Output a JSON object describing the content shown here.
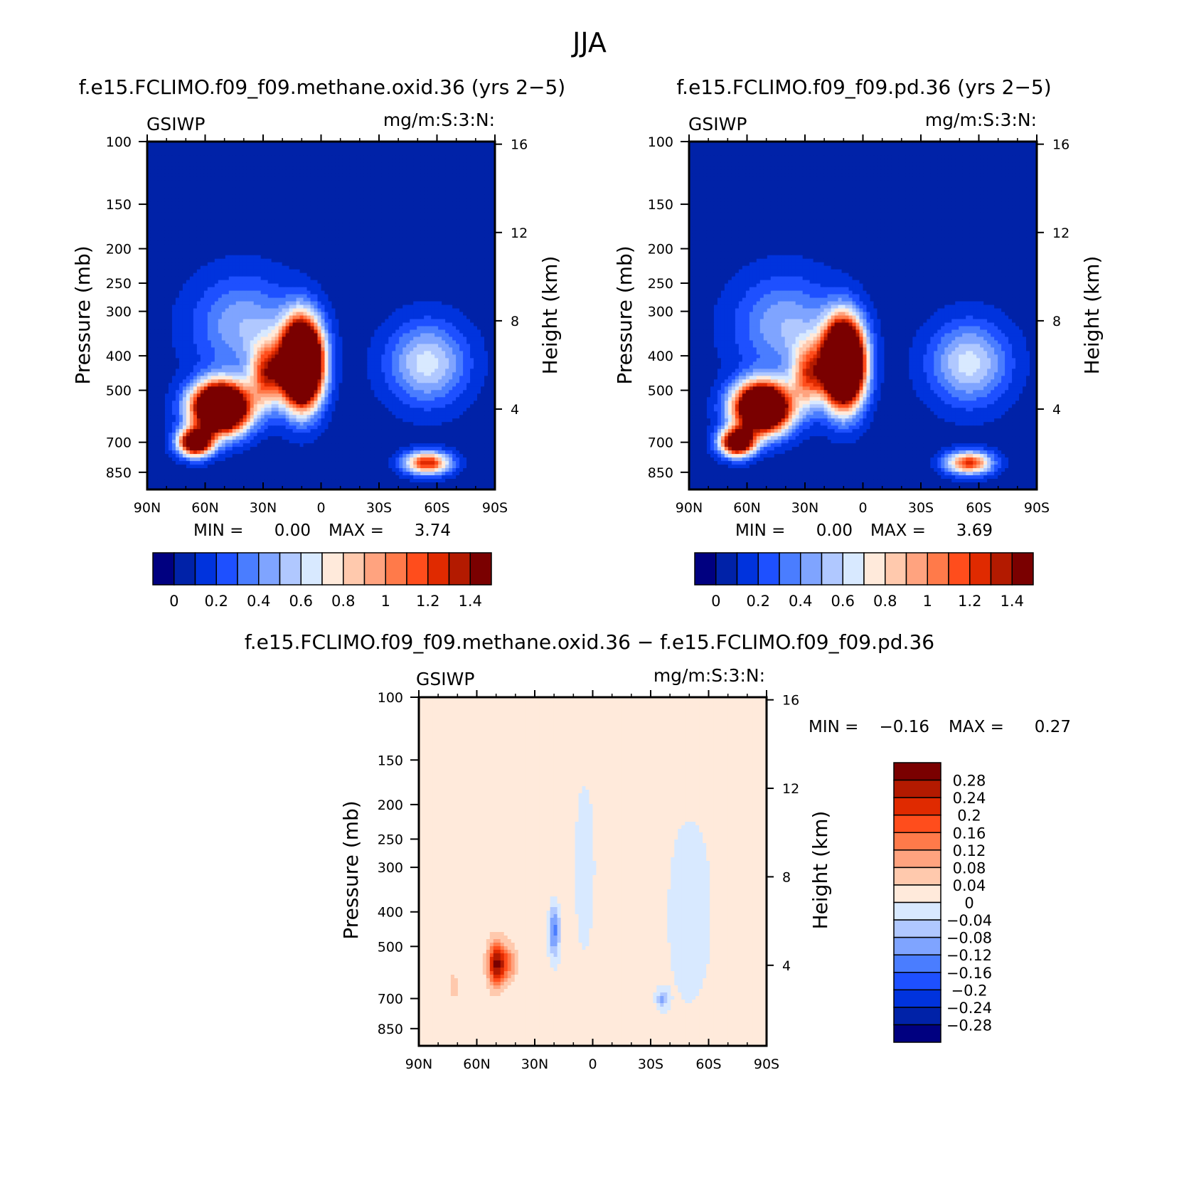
{
  "figure_title": "JJA",
  "colors": {
    "seq": [
      "#000080",
      "#0022a8",
      "#0033dd",
      "#1e50ff",
      "#4a7dff",
      "#7fa4ff",
      "#b0c8ff",
      "#d8e9ff",
      "#ffeadb",
      "#ffc9ad",
      "#ffa37f",
      "#ff7a4a",
      "#ff4d1c",
      "#e02a00",
      "#b31a00",
      "#7a0000"
    ],
    "diff": [
      "#000080",
      "#0022a8",
      "#0033dd",
      "#1e50ff",
      "#4a7dff",
      "#7fa4ff",
      "#b0c8ff",
      "#d8e9ff",
      "#ffeadb",
      "#ffc9ad",
      "#ffa37f",
      "#ff7a4a",
      "#ff4d1c",
      "#e02a00",
      "#b31a00",
      "#7a0000"
    ]
  },
  "chart_data": [
    {
      "type": "heatmap",
      "title": "f.e15.FCLIMO.f09_f09.methane.oxid.36 (yrs 2−5)",
      "var_label": "GSIWP",
      "units_label": "mg/m:S:3:N:",
      "ylabel": "Pressure (mb)",
      "y2label": "Height (km)",
      "x_ticks": [
        "90N",
        "60N",
        "30N",
        "0",
        "30S",
        "60S",
        "90S"
      ],
      "y_ticks": [
        100,
        150,
        200,
        250,
        300,
        400,
        500,
        700,
        850
      ],
      "y2_ticks": [
        16,
        12,
        8,
        4
      ],
      "ylim": [
        100,
        950
      ],
      "min_label": "MIN =",
      "min_value": "0.00",
      "max_label": "MAX =",
      "max_value": "3.74",
      "colorbar_labels": [
        "0",
        "0.2",
        "0.4",
        "0.6",
        "0.8",
        "1",
        "1.2",
        "1.4"
      ],
      "blobs": [
        {
          "lat": 52,
          "p": 560,
          "peak": 3.0,
          "wlat": 10,
          "wlogp": 0.11
        },
        {
          "lat": 65,
          "p": 700,
          "peak": 2.0,
          "wlat": 6,
          "wlogp": 0.06
        },
        {
          "lat": 10,
          "p": 420,
          "peak": 3.74,
          "wlat": 7,
          "wlogp": 0.18
        },
        {
          "lat": 28,
          "p": 450,
          "peak": 1.1,
          "wlat": 6,
          "wlogp": 0.14
        },
        {
          "lat": -55,
          "p": 800,
          "peak": 1.25,
          "wlat": 8,
          "wlogp": 0.05
        },
        {
          "lat": -55,
          "p": 420,
          "peak": 0.6,
          "wlat": 14,
          "wlogp": 0.18
        },
        {
          "lat": 40,
          "p": 330,
          "peak": 0.45,
          "wlat": 18,
          "wlogp": 0.22
        }
      ]
    },
    {
      "type": "heatmap",
      "title": "f.e15.FCLIMO.f09_f09.pd.36 (yrs 2−5)",
      "var_label": "GSIWP",
      "units_label": "mg/m:S:3:N:",
      "ylabel": "Pressure (mb)",
      "y2label": "Height (km)",
      "x_ticks": [
        "90N",
        "60N",
        "30N",
        "0",
        "30S",
        "60S",
        "90S"
      ],
      "y_ticks": [
        100,
        150,
        200,
        250,
        300,
        400,
        500,
        700,
        850
      ],
      "y2_ticks": [
        16,
        12,
        8,
        4
      ],
      "ylim": [
        100,
        950
      ],
      "min_label": "MIN =",
      "min_value": "0.00",
      "max_label": "MAX =",
      "max_value": "3.69",
      "colorbar_labels": [
        "0",
        "0.2",
        "0.4",
        "0.6",
        "0.8",
        "1",
        "1.2",
        "1.4"
      ],
      "blobs": [
        {
          "lat": 52,
          "p": 560,
          "peak": 2.8,
          "wlat": 10,
          "wlogp": 0.11
        },
        {
          "lat": 65,
          "p": 700,
          "peak": 2.0,
          "wlat": 6,
          "wlogp": 0.06
        },
        {
          "lat": 10,
          "p": 420,
          "peak": 3.69,
          "wlat": 7,
          "wlogp": 0.18
        },
        {
          "lat": 28,
          "p": 450,
          "peak": 1.0,
          "wlat": 6,
          "wlogp": 0.14
        },
        {
          "lat": -55,
          "p": 800,
          "peak": 1.2,
          "wlat": 8,
          "wlogp": 0.05
        },
        {
          "lat": -55,
          "p": 420,
          "peak": 0.6,
          "wlat": 14,
          "wlogp": 0.18
        },
        {
          "lat": 40,
          "p": 330,
          "peak": 0.45,
          "wlat": 18,
          "wlogp": 0.22
        }
      ]
    },
    {
      "type": "heatmap",
      "title": "f.e15.FCLIMO.f09_f09.methane.oxid.36 − f.e15.FCLIMO.f09_f09.pd.36",
      "var_label": "GSIWP",
      "units_label": "mg/m:S:3:N:",
      "ylabel": "Pressure (mb)",
      "y2label": "Height (km)",
      "x_ticks": [
        "90N",
        "60N",
        "30N",
        "0",
        "30S",
        "60S",
        "90S"
      ],
      "y_ticks": [
        100,
        150,
        200,
        250,
        300,
        400,
        500,
        700,
        850
      ],
      "y2_ticks": [
        16,
        12,
        8,
        4
      ],
      "ylim": [
        100,
        950
      ],
      "min_label": "MIN =",
      "min_value": "−0.16",
      "max_label": "MAX =",
      "max_value": "0.27",
      "colorbar_labels": [
        "0.28",
        "0.24",
        "0.2",
        "0.16",
        "0.12",
        "0.08",
        "0.04",
        "0",
        "−0.04",
        "−0.08",
        "−0.12",
        "−0.16",
        "−0.2",
        "−0.24",
        "−0.28"
      ],
      "blobs": [
        {
          "lat": 50,
          "p": 560,
          "peak": 0.27,
          "wlat": 3,
          "wlogp": 0.1
        },
        {
          "lat": 44,
          "p": 560,
          "peak": 0.12,
          "wlat": 3,
          "wlogp": 0.08
        },
        {
          "lat": 20,
          "p": 450,
          "peak": -0.16,
          "wlat": 2,
          "wlogp": 0.12
        },
        {
          "lat": 72,
          "p": 650,
          "peak": 0.06,
          "wlat": 2,
          "wlogp": 0.06
        },
        {
          "lat": -36,
          "p": 700,
          "peak": -0.1,
          "wlat": 2,
          "wlogp": 0.04
        },
        {
          "lat": 30,
          "p": 300,
          "peak": 0.03,
          "wlat": 12,
          "wlogp": 0.4
        },
        {
          "lat": -20,
          "p": 300,
          "peak": 0.02,
          "wlat": 8,
          "wlogp": 0.5
        },
        {
          "lat": -75,
          "p": 300,
          "peak": 0.02,
          "wlat": 5,
          "wlogp": 0.5
        },
        {
          "lat": 5,
          "p": 300,
          "peak": -0.02,
          "wlat": 6,
          "wlogp": 0.5
        },
        {
          "lat": -50,
          "p": 400,
          "peak": -0.02,
          "wlat": 10,
          "wlogp": 0.5
        }
      ]
    }
  ]
}
